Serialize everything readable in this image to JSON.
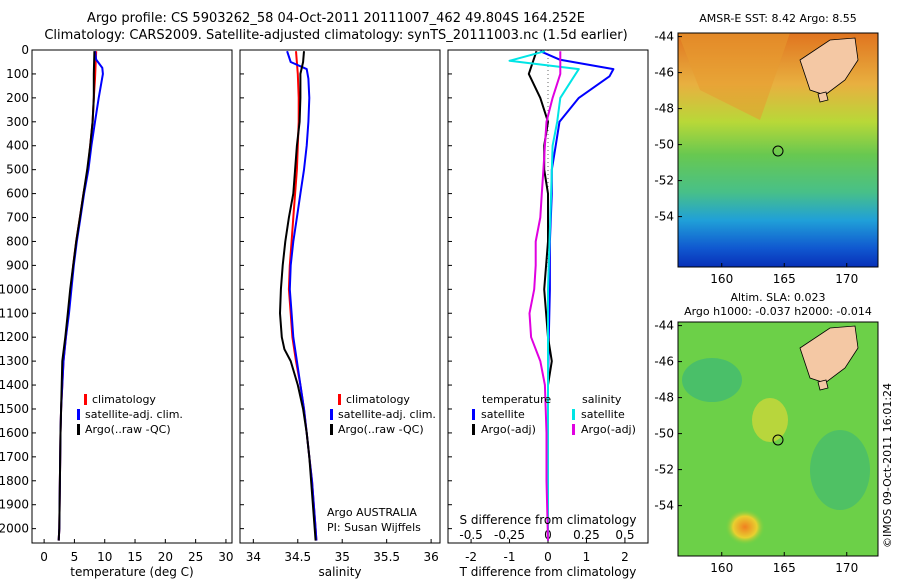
{
  "title": {
    "line1": "Argo profile: CS 5903262_58 04-Oct-2011 20111007_462 49.804S 164.252E",
    "line2": "Climatology: CARS2009. Satellite-adjusted climatology: synTS_20111003.nc (1.5d earlier)"
  },
  "colors": {
    "climatology": "#ff0000",
    "satellite": "#0000ff",
    "argo": "#000000",
    "sat_salinity": "#00e5e5",
    "argo_salinity": "#e000e0"
  },
  "chart_data": [
    {
      "type": "line",
      "panel": "temperature",
      "xlabel": "temperature (deg C)",
      "ylabel": "",
      "xlim": [
        -2,
        31
      ],
      "ylim": [
        2060,
        0
      ],
      "y_reversed": true,
      "xticks": [
        0,
        5,
        10,
        15,
        20,
        25,
        30
      ],
      "yticks": [
        0,
        100,
        200,
        300,
        400,
        500,
        600,
        700,
        800,
        900,
        1000,
        1100,
        1200,
        1300,
        1400,
        1500,
        1600,
        1700,
        1800,
        1900,
        2000
      ],
      "legend": {
        "entries": [
          "climatology",
          "satellite-adj. clim.",
          "Argo(..raw -QC)"
        ],
        "placement": "lower-center"
      },
      "series": [
        {
          "name": "climatology",
          "color": "#ff0000",
          "points": [
            [
              8.6,
              5
            ],
            [
              8.5,
              60
            ],
            [
              8.4,
              120
            ],
            [
              8.2,
              200
            ],
            [
              8.0,
              300
            ],
            [
              7.6,
              400
            ],
            [
              7.2,
              500
            ],
            [
              6.5,
              600
            ],
            [
              5.9,
              700
            ],
            [
              5.3,
              800
            ],
            [
              4.8,
              900
            ],
            [
              4.4,
              1000
            ],
            [
              4.0,
              1100
            ],
            [
              3.6,
              1200
            ],
            [
              3.2,
              1300
            ],
            [
              3.0,
              1400
            ],
            [
              2.8,
              1500
            ],
            [
              2.7,
              1600
            ],
            [
              2.6,
              1800
            ],
            [
              2.5,
              2000
            ],
            [
              2.4,
              2050
            ]
          ]
        },
        {
          "name": "satellite-adj. clim.",
          "color": "#0000ff",
          "points": [
            [
              8.4,
              5
            ],
            [
              8.6,
              40
            ],
            [
              9.6,
              75
            ],
            [
              9.7,
              100
            ],
            [
              9.0,
              200
            ],
            [
              8.4,
              300
            ],
            [
              7.8,
              400
            ],
            [
              7.3,
              500
            ],
            [
              6.6,
              600
            ],
            [
              6.0,
              700
            ],
            [
              5.4,
              800
            ],
            [
              4.9,
              900
            ],
            [
              4.5,
              1000
            ],
            [
              4.1,
              1100
            ],
            [
              3.6,
              1200
            ],
            [
              3.2,
              1300
            ],
            [
              3.0,
              1400
            ],
            [
              2.8,
              1500
            ],
            [
              2.7,
              1600
            ],
            [
              2.6,
              1800
            ],
            [
              2.5,
              2000
            ],
            [
              2.4,
              2050
            ]
          ]
        },
        {
          "name": "Argo(..raw -QC)",
          "color": "#000000",
          "points": [
            [
              8.3,
              5
            ],
            [
              8.2,
              100
            ],
            [
              8.2,
              200
            ],
            [
              8.0,
              300
            ],
            [
              7.6,
              400
            ],
            [
              7.1,
              500
            ],
            [
              6.5,
              600
            ],
            [
              5.9,
              700
            ],
            [
              5.3,
              800
            ],
            [
              4.8,
              900
            ],
            [
              4.3,
              1000
            ],
            [
              3.9,
              1100
            ],
            [
              3.5,
              1200
            ],
            [
              3.1,
              1280
            ],
            [
              3.0,
              1300
            ],
            [
              2.8,
              1500
            ],
            [
              2.7,
              1600
            ],
            [
              2.6,
              1800
            ],
            [
              2.5,
              2000
            ],
            [
              2.4,
              2050
            ]
          ]
        }
      ]
    },
    {
      "type": "line",
      "panel": "salinity",
      "xlabel": "salinity",
      "ylabel": "",
      "xlim": [
        33.85,
        36.1
      ],
      "ylim": [
        2060,
        0
      ],
      "y_reversed": true,
      "xticks": [
        34,
        34.5,
        35,
        35.5,
        36
      ],
      "annotation": {
        "line1": "Argo AUSTRALIA",
        "line2": "PI: Susan Wijffels"
      },
      "legend": {
        "entries": [
          "climatology",
          "satellite-adj. clim.",
          "Argo(..raw -QC)"
        ],
        "placement": "lower-right"
      },
      "series": [
        {
          "name": "climatology",
          "color": "#ff0000",
          "points": [
            [
              34.48,
              5
            ],
            [
              34.5,
              100
            ],
            [
              34.51,
              200
            ],
            [
              34.51,
              300
            ],
            [
              34.5,
              400
            ],
            [
              34.49,
              500
            ],
            [
              34.47,
              600
            ],
            [
              34.45,
              700
            ],
            [
              34.43,
              800
            ],
            [
              34.41,
              900
            ],
            [
              34.4,
              1000
            ],
            [
              34.42,
              1100
            ],
            [
              34.44,
              1200
            ],
            [
              34.48,
              1300
            ],
            [
              34.53,
              1400
            ],
            [
              34.57,
              1500
            ],
            [
              34.6,
              1600
            ],
            [
              34.63,
              1700
            ],
            [
              34.66,
              1800
            ],
            [
              34.68,
              1900
            ],
            [
              34.7,
              2000
            ],
            [
              34.71,
              2050
            ]
          ]
        },
        {
          "name": "satellite-adj. clim.",
          "color": "#0000ff",
          "points": [
            [
              34.38,
              5
            ],
            [
              34.42,
              50
            ],
            [
              34.6,
              80
            ],
            [
              34.62,
              120
            ],
            [
              34.63,
              200
            ],
            [
              34.62,
              300
            ],
            [
              34.6,
              400
            ],
            [
              34.57,
              500
            ],
            [
              34.53,
              600
            ],
            [
              34.49,
              700
            ],
            [
              34.45,
              800
            ],
            [
              34.42,
              900
            ],
            [
              34.41,
              1000
            ],
            [
              34.43,
              1100
            ],
            [
              34.45,
              1200
            ],
            [
              34.49,
              1300
            ],
            [
              34.53,
              1400
            ],
            [
              34.57,
              1500
            ],
            [
              34.6,
              1600
            ],
            [
              34.63,
              1700
            ],
            [
              34.66,
              1800
            ],
            [
              34.68,
              1900
            ],
            [
              34.7,
              2000
            ],
            [
              34.71,
              2050
            ]
          ]
        },
        {
          "name": "Argo(..raw -QC)",
          "color": "#000000",
          "points": [
            [
              34.57,
              5
            ],
            [
              34.56,
              50
            ],
            [
              34.53,
              100
            ],
            [
              34.53,
              200
            ],
            [
              34.52,
              300
            ],
            [
              34.49,
              400
            ],
            [
              34.47,
              500
            ],
            [
              34.45,
              600
            ],
            [
              34.4,
              700
            ],
            [
              34.36,
              800
            ],
            [
              34.33,
              900
            ],
            [
              34.31,
              1000
            ],
            [
              34.3,
              1100
            ],
            [
              34.32,
              1200
            ],
            [
              34.35,
              1250
            ],
            [
              34.42,
              1300
            ],
            [
              34.5,
              1400
            ],
            [
              34.56,
              1500
            ],
            [
              34.6,
              1600
            ],
            [
              34.63,
              1700
            ],
            [
              34.65,
              1800
            ],
            [
              34.67,
              1900
            ],
            [
              34.69,
              2000
            ],
            [
              34.7,
              2050
            ]
          ]
        }
      ]
    },
    {
      "type": "line",
      "panel": "difference",
      "xlabel": "T difference from climatology",
      "xlabel_top": "S difference from climatology",
      "xlim": [
        -2.6,
        2.6
      ],
      "ylim": [
        2060,
        0
      ],
      "y_reversed": true,
      "xticks": [
        -2,
        -1,
        0,
        1,
        2
      ],
      "xticks_top": [
        -0.5,
        -0.25,
        0,
        0.25,
        0.5
      ],
      "legend": {
        "temperature_title": "temperature",
        "salinity_title": "salinity",
        "entries": [
          [
            "satellite",
            "Argo(-adj)"
          ],
          [
            "satellite",
            "Argo(-adj)"
          ]
        ],
        "placement": "lower-center"
      },
      "series": [
        {
          "name": "temperature satellite",
          "color": "#0000ff",
          "points": [
            [
              -0.2,
              5
            ],
            [
              0.3,
              40
            ],
            [
              1.7,
              80
            ],
            [
              1.6,
              110
            ],
            [
              0.8,
              200
            ],
            [
              0.3,
              300
            ],
            [
              0.2,
              400
            ],
            [
              0.1,
              500
            ],
            [
              0.1,
              600
            ],
            [
              0.05,
              800
            ],
            [
              0.05,
              1000
            ],
            [
              0.02,
              1200
            ],
            [
              0.0,
              1400
            ],
            [
              0.0,
              2050
            ]
          ]
        },
        {
          "name": "temperature Argo(-adj)",
          "color": "#000000",
          "points": [
            [
              -0.3,
              5
            ],
            [
              -0.5,
              100
            ],
            [
              -0.2,
              200
            ],
            [
              0.0,
              300
            ],
            [
              -0.1,
              400
            ],
            [
              -0.1,
              500
            ],
            [
              0.0,
              600
            ],
            [
              0.0,
              800
            ],
            [
              -0.1,
              1000
            ],
            [
              0.0,
              1200
            ],
            [
              0.1,
              1300
            ],
            [
              0.0,
              1400
            ],
            [
              0.0,
              2050
            ]
          ]
        },
        {
          "name": "salinity satellite",
          "color": "#00e5e5",
          "points": [
            [
              -0.02,
              5
            ],
            [
              -0.25,
              45
            ],
            [
              0.2,
              80
            ],
            [
              0.16,
              120
            ],
            [
              0.08,
              200
            ],
            [
              0.06,
              300
            ],
            [
              0.03,
              400
            ],
            [
              0.02,
              600
            ],
            [
              0.01,
              800
            ],
            [
              0.0,
              1000
            ],
            [
              0.0,
              1400
            ],
            [
              0.0,
              2050
            ]
          ]
        },
        {
          "name": "salinity Argo(-adj)",
          "color": "#e000e0",
          "points": [
            [
              0.08,
              5
            ],
            [
              0.08,
              100
            ],
            [
              0.03,
              200
            ],
            [
              -0.01,
              300
            ],
            [
              -0.02,
              400
            ],
            [
              -0.03,
              500
            ],
            [
              -0.04,
              600
            ],
            [
              -0.05,
              700
            ],
            [
              -0.08,
              800
            ],
            [
              -0.08,
              900
            ],
            [
              -0.09,
              1000
            ],
            [
              -0.12,
              1100
            ],
            [
              -0.11,
              1200
            ],
            [
              -0.05,
              1300
            ],
            [
              -0.02,
              1400
            ],
            [
              -0.01,
              1600
            ],
            [
              -0.01,
              1800
            ],
            [
              0.0,
              2050
            ]
          ]
        }
      ]
    }
  ],
  "maps": {
    "sst": {
      "title": "AMSR-E SST: 8.42 Argo: 8.55",
      "yticks": [
        "-44",
        "-46",
        "-48",
        "-50",
        "-52",
        "-54"
      ],
      "xticks": [
        "160",
        "165",
        "170"
      ]
    },
    "sla": {
      "title_line1": "Altim. SLA: 0.023",
      "title_line2": "Argo h1000: -0.037 h2000: -0.014",
      "yticks": [
        "-44",
        "-46",
        "-48",
        "-50",
        "-52",
        "-54"
      ],
      "xticks": [
        "160",
        "165",
        "170"
      ]
    }
  },
  "credit": "©IMOS 09-Oct-2011 16:01:24"
}
